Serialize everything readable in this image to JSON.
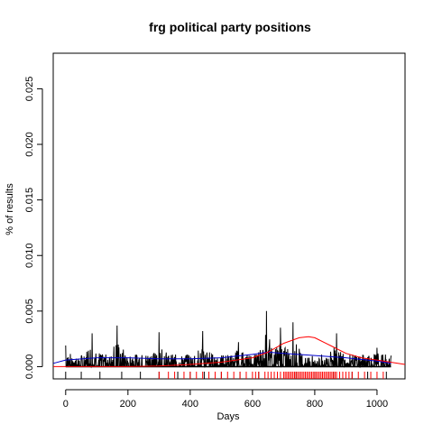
{
  "chart_data": {
    "type": "line",
    "title": "frg political party positions",
    "xlabel": "Days",
    "ylabel": "% of results",
    "xlim": [
      -40,
      1090
    ],
    "ylim": [
      -0.0011,
      0.0282
    ],
    "x_ticks": [
      0,
      200,
      400,
      600,
      800,
      1000
    ],
    "x_tick_labels": [
      "0",
      "200",
      "400",
      "600",
      "800",
      "1000"
    ],
    "y_ticks": [
      0.0,
      0.005,
      0.01,
      0.015,
      0.02,
      0.025
    ],
    "y_tick_labels": [
      "0.000",
      "0.005",
      "0.010",
      "0.015",
      "0.020",
      "0.025"
    ],
    "grid": false,
    "legend": "none",
    "daily_series": {
      "x_range": [
        0,
        1045
      ],
      "peaks": [
        [
          0,
          0.0019
        ],
        [
          85,
          0.003
        ],
        [
          165,
          0.0037
        ],
        [
          300,
          0.0031
        ],
        [
          440,
          0.0032
        ],
        [
          555,
          0.0022
        ],
        [
          645,
          0.005
        ],
        [
          690,
          0.0035
        ],
        [
          730,
          0.004
        ],
        [
          870,
          0.003
        ],
        [
          1000,
          0.0017
        ]
      ],
      "color": "#000000"
    },
    "smooth_blue": {
      "x": [
        -40,
        0,
        100,
        200,
        300,
        400,
        500,
        600,
        650,
        700,
        800,
        900,
        1000,
        1045
      ],
      "y": [
        0.0003,
        0.0006,
        0.0008,
        0.0008,
        0.0007,
        0.0007,
        0.0008,
        0.0011,
        0.0013,
        0.0012,
        0.001,
        0.0008,
        0.0005,
        0.0003
      ],
      "color": "#0000cc"
    },
    "smooth_red": {
      "x": [
        -40,
        0,
        100,
        200,
        300,
        400,
        500,
        600,
        650,
        700,
        750,
        780,
        800,
        850,
        900,
        950,
        1000,
        1090
      ],
      "y": [
        0.0,
        0.0,
        0.0,
        0.0,
        5e-05,
        0.0002,
        0.0004,
        0.0008,
        0.0013,
        0.0021,
        0.0026,
        0.0027,
        0.0026,
        0.0019,
        0.0012,
        0.0008,
        0.0006,
        0.0002
      ],
      "color": "#ff0000"
    },
    "rug": {
      "black_x": [
        0,
        50,
        110,
        180,
        240,
        300,
        360,
        400,
        445,
        500,
        560,
        620,
        680,
        740,
        800,
        860,
        920,
        970,
        1030
      ],
      "red_x": [
        300,
        330,
        350,
        380,
        400,
        420,
        440,
        460,
        480,
        500,
        520,
        540,
        560,
        580,
        600,
        610,
        620,
        640,
        650,
        660,
        670,
        680,
        690,
        700,
        705,
        710,
        715,
        720,
        725,
        730,
        735,
        740,
        745,
        750,
        755,
        760,
        765,
        770,
        775,
        780,
        785,
        790,
        795,
        800,
        805,
        810,
        815,
        820,
        825,
        830,
        835,
        840,
        845,
        850,
        855,
        860,
        865,
        870,
        880,
        890,
        900,
        910,
        920,
        940,
        960,
        980,
        1000,
        1020
      ]
    }
  }
}
